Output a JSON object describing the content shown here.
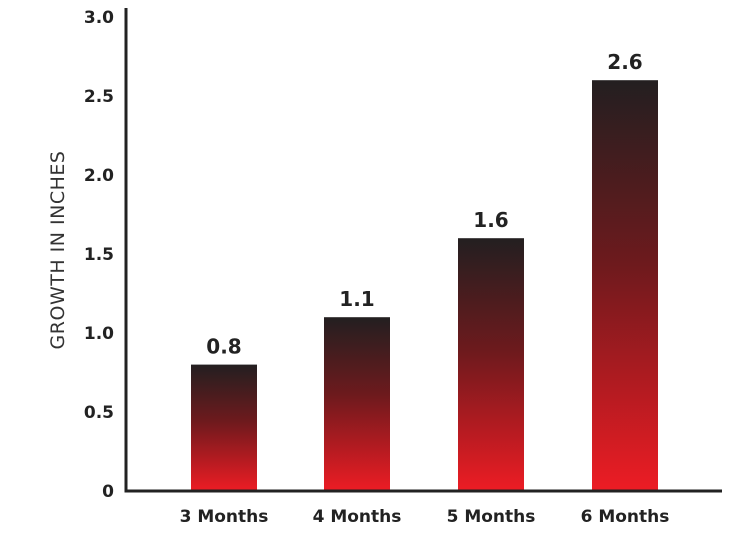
{
  "chart_data": {
    "type": "bar",
    "title": "",
    "xlabel": "",
    "ylabel": "GROWTH IN INCHES",
    "categories": [
      "3 Months",
      "4 Months",
      "5 Months",
      "6 Months"
    ],
    "values": [
      0.8,
      1.1,
      1.6,
      2.6
    ],
    "value_labels": [
      "0.8",
      "1.1",
      "1.6",
      "2.6"
    ],
    "ylim": [
      0,
      3.0
    ],
    "yticks": [
      "0",
      "0.5",
      "1.0",
      "1.5",
      "2.0",
      "2.5",
      "3.0"
    ],
    "ytick_values": [
      0,
      0.5,
      1.0,
      1.5,
      2.0,
      2.5,
      3.0
    ],
    "grid": false,
    "legend": "none",
    "colors": {
      "bar_top": "#231f20",
      "bar_bottom": "#ed1c24",
      "text": "#222222",
      "axis": "#222222"
    }
  }
}
